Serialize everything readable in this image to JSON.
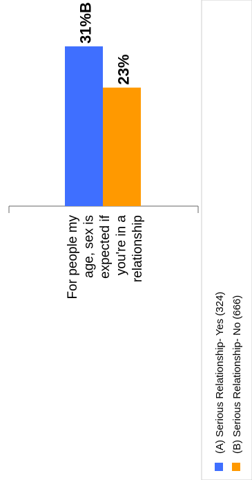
{
  "chart_data": {
    "type": "bar",
    "orientation": "rotated-90-ccw",
    "categories": [
      "For people my age, sex is expected if you're in a relationship"
    ],
    "category_label_lines": [
      "For people my",
      "age, sex is",
      "expected if",
      "you're in a",
      "relationship"
    ],
    "series": [
      {
        "name": "(A) Serious Relationship- Yes (324)",
        "values": [
          31
        ],
        "label": "31%B",
        "color": "#3f6fff"
      },
      {
        "name": "(B) Serious Relationship- No (666)",
        "values": [
          23
        ],
        "label": "23%",
        "color": "#ff9900"
      }
    ],
    "ylim": [
      0,
      40
    ],
    "grid": false,
    "legend_position": "right"
  }
}
